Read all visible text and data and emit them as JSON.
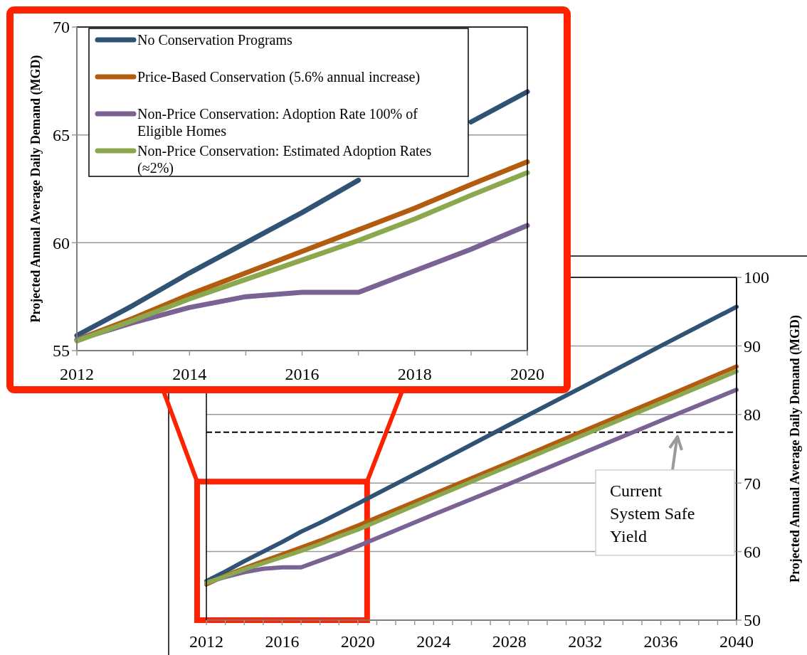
{
  "chart_data": [
    {
      "type": "line",
      "ylabel": "Projected Annual Average Daily Demand (MGD)",
      "x": [
        2012,
        2013,
        2014,
        2015,
        2016,
        2017,
        2018,
        2019,
        2020
      ],
      "xlim": [
        2012,
        2020
      ],
      "xticks": [
        2012,
        {
          "value": 2013,
          "label": null
        },
        2014,
        {
          "value": 2015,
          "label": null
        },
        2016,
        {
          "value": 2017,
          "label": null
        },
        2018,
        {
          "value": 2019,
          "label": null
        },
        2020
      ],
      "ylim": [
        55,
        70
      ],
      "yticks": [
        55,
        60,
        65,
        70
      ],
      "grid": "y",
      "legend": "top left",
      "series": [
        {
          "name": "No Conservation Programs",
          "color": "#2f5275",
          "values": [
            55.7,
            57.1,
            58.6,
            60.0,
            61.4,
            62.9,
            null,
            65.6,
            67.0
          ]
        },
        {
          "name": "Price-Based Conservation (5.6% annual increase)",
          "color": "#b35c0f",
          "values": [
            55.5,
            56.5,
            57.6,
            58.6,
            59.6,
            60.6,
            61.6,
            62.7,
            63.75
          ]
        },
        {
          "name": "Non-Price Conservation: Adoption Rate 100% of Eligible Homes",
          "color": "#7a6394",
          "values": [
            55.5,
            56.3,
            57.0,
            57.5,
            57.7,
            57.7,
            58.7,
            59.7,
            60.8
          ]
        },
        {
          "name": "Non-Price Conservation: Estimated Adoption Rates (≈2%)",
          "color": "#8ba84f",
          "values": [
            55.45,
            56.4,
            57.4,
            58.3,
            59.2,
            60.1,
            61.1,
            62.2,
            63.25
          ]
        }
      ]
    },
    {
      "type": "line",
      "ylabel": "Projected Annual Average Daily Demand (MGD)",
      "x": [
        2012,
        2013,
        2014,
        2015,
        2016,
        2017,
        2018,
        2019,
        2020,
        2024,
        2028,
        2032,
        2036,
        2040
      ],
      "xlim": [
        2012,
        2040
      ],
      "xticks": [
        2012,
        {
          "value": 2013,
          "label": null
        },
        {
          "value": 2014,
          "label": null
        },
        {
          "value": 2015,
          "label": null
        },
        2016,
        {
          "value": 2017,
          "label": null
        },
        {
          "value": 2018,
          "label": null
        },
        {
          "value": 2019,
          "label": null
        },
        2020,
        {
          "value": 2021,
          "label": null
        },
        {
          "value": 2022,
          "label": null
        },
        {
          "value": 2023,
          "label": null
        },
        2024,
        {
          "value": 2025,
          "label": null
        },
        {
          "value": 2026,
          "label": null
        },
        {
          "value": 2027,
          "label": null
        },
        2028,
        {
          "value": 2029,
          "label": null
        },
        {
          "value": 2030,
          "label": null
        },
        {
          "value": 2031,
          "label": null
        },
        2032,
        {
          "value": 2033,
          "label": null
        },
        {
          "value": 2034,
          "label": null
        },
        {
          "value": 2035,
          "label": null
        },
        2036,
        {
          "value": 2037,
          "label": null
        },
        {
          "value": 2038,
          "label": null
        },
        {
          "value": 2039,
          "label": null
        },
        2040
      ],
      "ylim": [
        50,
        100
      ],
      "yticks": [
        50,
        60,
        70,
        80,
        90,
        100
      ],
      "grid": "y",
      "ref_lines": [
        {
          "axis": "y",
          "value": 77.4,
          "label": "Current System Safe Yield",
          "color": "#000000",
          "line_style": "dashed"
        }
      ],
      "series": [
        {
          "color": "#2f5275",
          "values": [
            55.7,
            57.1,
            58.6,
            60.0,
            61.4,
            62.9,
            64.2,
            65.6,
            67.0,
            72.7,
            78.5,
            84.2,
            90.0,
            95.7
          ]
        },
        {
          "color": "#b35c0f",
          "values": [
            55.2,
            56.5,
            57.6,
            58.6,
            59.6,
            60.6,
            61.6,
            62.7,
            63.8,
            68.4,
            73.0,
            77.7,
            82.3,
            87.0
          ]
        },
        {
          "color": "#7a6394",
          "values": [
            55.5,
            56.3,
            57.0,
            57.5,
            57.7,
            57.7,
            58.7,
            59.7,
            60.8,
            65.4,
            69.9,
            74.5,
            79.1,
            83.6
          ]
        },
        {
          "color": "#8ba84f",
          "values": [
            55.4,
            56.4,
            57.4,
            58.3,
            59.2,
            60.1,
            61.1,
            62.2,
            63.2,
            67.9,
            72.5,
            77.1,
            81.7,
            86.3
          ]
        }
      ]
    }
  ]
}
